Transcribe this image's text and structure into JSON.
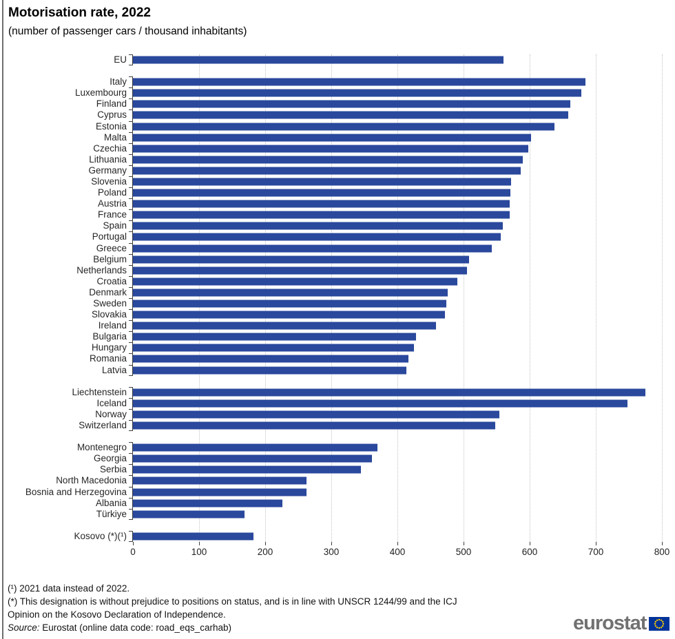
{
  "page": {
    "title": "Motorisation rate, 2022",
    "subtitle": "(number of passenger cars / thousand inhabitants)"
  },
  "chart_data": {
    "type": "bar",
    "orientation": "horizontal",
    "title": "Motorisation rate, 2022",
    "subtitle": "(number of passenger cars / thousand inhabitants)",
    "xlabel": "",
    "ylabel": "",
    "xlim": [
      0,
      800
    ],
    "xticks": [
      0,
      100,
      200,
      300,
      400,
      500,
      600,
      700,
      800
    ],
    "grid": "vertical-dotted",
    "bar_color": "#2A489C",
    "groups": [
      {
        "name": "eu-aggregate",
        "items": [
          {
            "label": "EU",
            "value": 560
          }
        ]
      },
      {
        "name": "eu-members",
        "items": [
          {
            "label": "Italy",
            "value": 684
          },
          {
            "label": "Luxembourg",
            "value": 678
          },
          {
            "label": "Finland",
            "value": 661
          },
          {
            "label": "Cyprus",
            "value": 658
          },
          {
            "label": "Estonia",
            "value": 637
          },
          {
            "label": "Malta",
            "value": 602
          },
          {
            "label": "Czechia",
            "value": 598
          },
          {
            "label": "Lithuania",
            "value": 590
          },
          {
            "label": "Germany",
            "value": 586
          },
          {
            "label": "Slovenia",
            "value": 572
          },
          {
            "label": "Poland",
            "value": 571
          },
          {
            "label": "Austria",
            "value": 570
          },
          {
            "label": "France",
            "value": 570
          },
          {
            "label": "Spain",
            "value": 559
          },
          {
            "label": "Portugal",
            "value": 556
          },
          {
            "label": "Greece",
            "value": 543
          },
          {
            "label": "Belgium",
            "value": 508
          },
          {
            "label": "Netherlands",
            "value": 505
          },
          {
            "label": "Croatia",
            "value": 491
          },
          {
            "label": "Denmark",
            "value": 476
          },
          {
            "label": "Sweden",
            "value": 474
          },
          {
            "label": "Slovakia",
            "value": 472
          },
          {
            "label": "Ireland",
            "value": 458
          },
          {
            "label": "Bulgaria",
            "value": 428
          },
          {
            "label": "Hungary",
            "value": 425
          },
          {
            "label": "Romania",
            "value": 417
          },
          {
            "label": "Latvia",
            "value": 414
          }
        ]
      },
      {
        "name": "efta",
        "items": [
          {
            "label": "Liechtenstein",
            "value": 775
          },
          {
            "label": "Iceland",
            "value": 748
          },
          {
            "label": "Norway",
            "value": 554
          },
          {
            "label": "Switzerland",
            "value": 548
          }
        ]
      },
      {
        "name": "candidates",
        "items": [
          {
            "label": "Montenegro",
            "value": 370
          },
          {
            "label": "Georgia",
            "value": 361
          },
          {
            "label": "Serbia",
            "value": 345
          },
          {
            "label": "North Macedonia",
            "value": 263
          },
          {
            "label": "Bosnia and Herzegovina",
            "value": 262
          },
          {
            "label": "Albania",
            "value": 226
          },
          {
            "label": "Türkiye",
            "value": 169
          }
        ]
      },
      {
        "name": "kosovo",
        "items": [
          {
            "label": "Kosovo (*)(¹)",
            "value": 182
          }
        ]
      }
    ]
  },
  "footer": {
    "footnote1": "(¹) 2021 data instead of 2022.",
    "footnote2": "(*) This designation is without prejudice to positions on status, and is in line with UNSCR 1244/99 and the ICJ",
    "footnote3": "Opinion on the Kosovo Declaration of Independence.",
    "source_label": "Source:",
    "source_text": " Eurostat (online data code: road_eqs_carhab)",
    "logo_text": "eurostat"
  },
  "colors": {
    "bar": "#2A489C",
    "flag_blue": "#003399",
    "flag_star": "#FFCC00"
  }
}
